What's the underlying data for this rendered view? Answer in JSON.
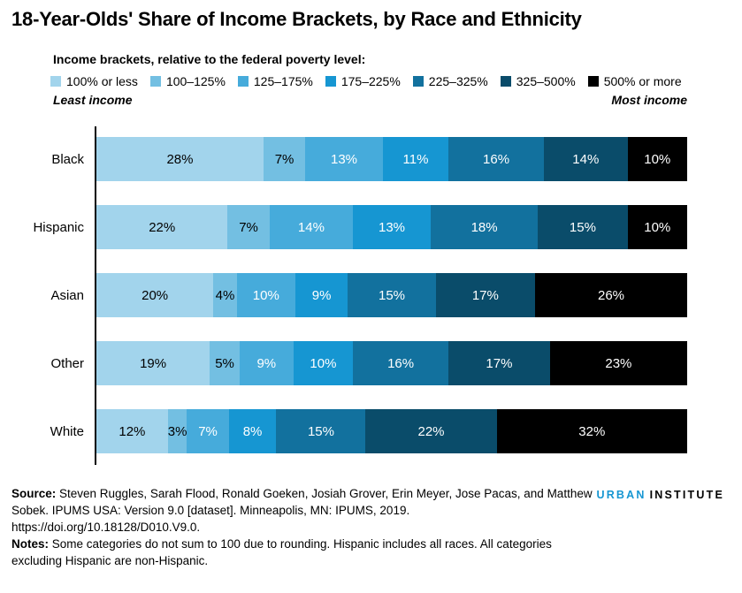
{
  "title": "18-Year-Olds' Share of Income Brackets, by Race and Ethnicity",
  "legend": {
    "title": "Income brackets, relative to the federal poverty level:",
    "least_label": "Least income",
    "most_label": "Most income"
  },
  "chart_data": {
    "type": "bar",
    "stacked": true,
    "orientation": "horizontal",
    "categories": [
      "Black",
      "Hispanic",
      "Asian",
      "Other",
      "White"
    ],
    "series": [
      {
        "name": "100% or less",
        "color": "#a2d4ec",
        "values": [
          28,
          22,
          20,
          19,
          12
        ]
      },
      {
        "name": "100–125%",
        "color": "#73bfe2",
        "values": [
          7,
          7,
          4,
          5,
          3
        ]
      },
      {
        "name": "125–175%",
        "color": "#46abdb",
        "values": [
          13,
          14,
          10,
          9,
          7
        ]
      },
      {
        "name": "175–225%",
        "color": "#1696d2",
        "values": [
          11,
          13,
          9,
          10,
          8
        ]
      },
      {
        "name": "225–325%",
        "color": "#12719e",
        "values": [
          16,
          18,
          15,
          16,
          15
        ]
      },
      {
        "name": "325–500%",
        "color": "#0a4c6a",
        "values": [
          14,
          15,
          17,
          17,
          22
        ]
      },
      {
        "name": "500% or more",
        "color": "#000000",
        "values": [
          10,
          10,
          26,
          23,
          32
        ]
      }
    ],
    "value_suffix": "%",
    "xlim": [
      0,
      100
    ],
    "grid": false,
    "legend_position": "top",
    "axis_color": "#000000"
  },
  "footer": {
    "source_label": "Source:",
    "source_text": " Steven Ruggles, Sarah Flood, Ronald Goeken, Josiah Grover, Erin Meyer, Jose Pacas, and Matthew Sobek. IPUMS USA: Version 9.0 [dataset]. Minneapolis, MN: IPUMS, 2019. https://doi.org/10.18128/D010.V9.0.",
    "notes_label": "Notes:",
    "notes_text": " Some categories do not sum to 100 due to rounding. Hispanic includes all races. All categories excluding Hispanic are non-Hispanic.",
    "logo_part1": "URBAN",
    "logo_part2": "INSTITUTE",
    "logo_accent_color": "#1696d2"
  }
}
